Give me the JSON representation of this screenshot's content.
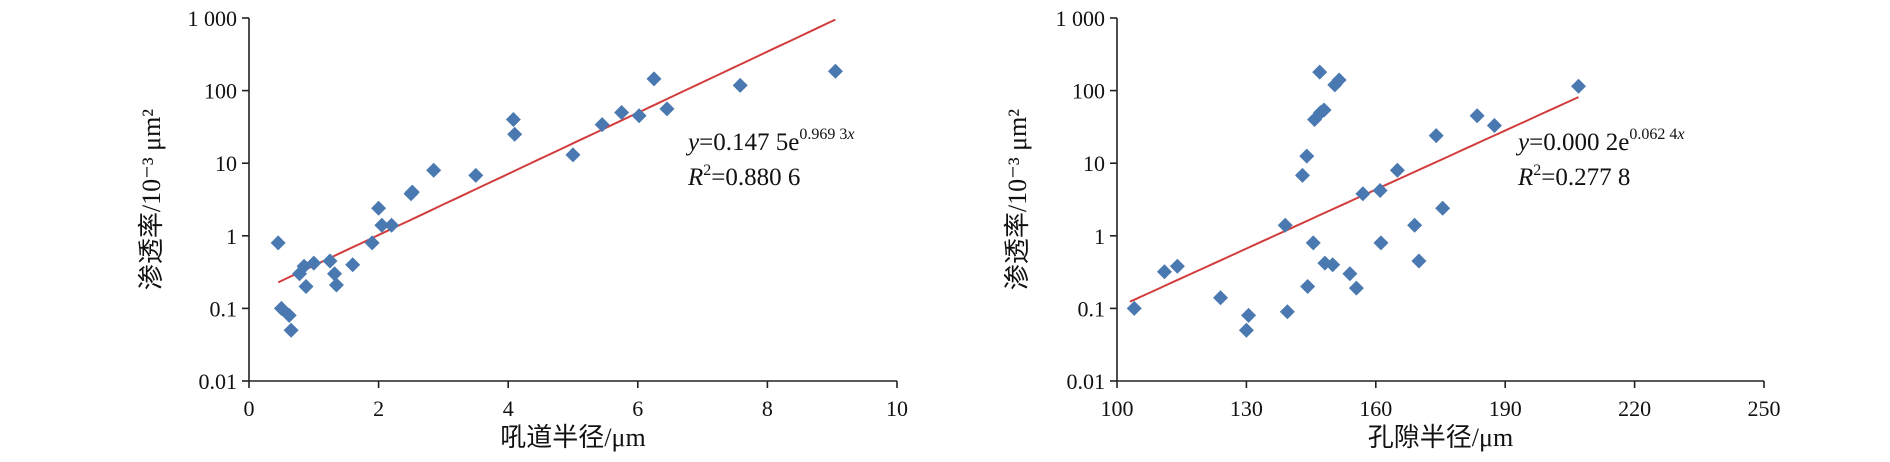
{
  "chart_data": [
    {
      "type": "scatter",
      "xlabel": "吼道半径/μm",
      "ylabel": "渗透率/10⁻³ μm²",
      "y_scale": "log",
      "xlim": [
        0,
        10
      ],
      "ylim": [
        0.01,
        1000
      ],
      "x_ticks": [
        "0",
        "2",
        "4",
        "6",
        "8",
        "10"
      ],
      "y_ticks": [
        "0.01",
        "0.1",
        "1",
        "10",
        "100",
        "1 000"
      ],
      "grid": false,
      "trendline": {
        "type": "exponential",
        "a": 0.1475,
        "b": 0.9693,
        "x_range": [
          0.45,
          9.05
        ],
        "equation_parts": {
          "y": "y",
          "coef": "=0.147 5e",
          "exp": "0.969 3",
          "x": "x"
        },
        "r2_parts": {
          "r": "R",
          "sup": "2",
          "value": "=0.880 6"
        },
        "label_position": "right-center"
      },
      "points": [
        {
          "x": 0.45,
          "y": 0.8
        },
        {
          "x": 0.5,
          "y": 0.1
        },
        {
          "x": 0.62,
          "y": 0.08
        },
        {
          "x": 0.65,
          "y": 0.05
        },
        {
          "x": 0.78,
          "y": 0.3
        },
        {
          "x": 0.85,
          "y": 0.38
        },
        {
          "x": 0.88,
          "y": 0.2
        },
        {
          "x": 1.0,
          "y": 0.42
        },
        {
          "x": 1.25,
          "y": 0.45
        },
        {
          "x": 1.32,
          "y": 0.3
        },
        {
          "x": 1.35,
          "y": 0.21
        },
        {
          "x": 1.6,
          "y": 0.4
        },
        {
          "x": 1.9,
          "y": 0.8
        },
        {
          "x": 2.0,
          "y": 2.4
        },
        {
          "x": 2.05,
          "y": 1.4
        },
        {
          "x": 2.2,
          "y": 1.4
        },
        {
          "x": 2.5,
          "y": 3.8
        },
        {
          "x": 2.52,
          "y": 4.0
        },
        {
          "x": 2.85,
          "y": 8.0
        },
        {
          "x": 3.5,
          "y": 6.8
        },
        {
          "x": 4.08,
          "y": 40
        },
        {
          "x": 4.1,
          "y": 25
        },
        {
          "x": 5.0,
          "y": 13
        },
        {
          "x": 5.45,
          "y": 34
        },
        {
          "x": 5.75,
          "y": 50
        },
        {
          "x": 6.02,
          "y": 45
        },
        {
          "x": 6.25,
          "y": 145
        },
        {
          "x": 6.45,
          "y": 56
        },
        {
          "x": 7.58,
          "y": 118
        },
        {
          "x": 9.05,
          "y": 185
        }
      ]
    },
    {
      "type": "scatter",
      "xlabel": "孔隙半径/μm",
      "ylabel": "渗透率/10⁻³ μm²",
      "y_scale": "log",
      "xlim": [
        100,
        250
      ],
      "ylim": [
        0.01,
        1000
      ],
      "x_ticks": [
        "100",
        "130",
        "160",
        "190",
        "220",
        "250"
      ],
      "y_ticks": [
        "0.01",
        "0.1",
        "1",
        "10",
        "100",
        "1 000"
      ],
      "grid": false,
      "trendline": {
        "type": "exponential",
        "a": 0.0002,
        "b": 0.0624,
        "x_range": [
          103,
          207
        ],
        "equation_parts": {
          "y": "y",
          "coef": "=0.000 2e",
          "exp": "0.062 4",
          "x": "x"
        },
        "r2_parts": {
          "r": "R",
          "sup": "2",
          "value": "=0.277 8"
        },
        "label_position": "right-center"
      },
      "points": [
        {
          "x": 104,
          "y": 0.1
        },
        {
          "x": 111,
          "y": 0.32
        },
        {
          "x": 114,
          "y": 0.38
        },
        {
          "x": 124,
          "y": 0.14
        },
        {
          "x": 130,
          "y": 0.05
        },
        {
          "x": 130.5,
          "y": 0.08
        },
        {
          "x": 139,
          "y": 1.4
        },
        {
          "x": 139.5,
          "y": 0.09
        },
        {
          "x": 143,
          "y": 6.8
        },
        {
          "x": 144,
          "y": 12.5
        },
        {
          "x": 144.2,
          "y": 0.2
        },
        {
          "x": 145.5,
          "y": 0.8
        },
        {
          "x": 145.8,
          "y": 40
        },
        {
          "x": 147,
          "y": 180
        },
        {
          "x": 147.2,
          "y": 50
        },
        {
          "x": 148,
          "y": 54
        },
        {
          "x": 148.2,
          "y": 0.42
        },
        {
          "x": 150,
          "y": 0.4
        },
        {
          "x": 150.5,
          "y": 120
        },
        {
          "x": 151.5,
          "y": 140
        },
        {
          "x": 154,
          "y": 0.3
        },
        {
          "x": 155.5,
          "y": 0.19
        },
        {
          "x": 157,
          "y": 3.8
        },
        {
          "x": 161,
          "y": 4.2
        },
        {
          "x": 161.2,
          "y": 0.8
        },
        {
          "x": 165,
          "y": 8.0
        },
        {
          "x": 169,
          "y": 1.4
        },
        {
          "x": 170,
          "y": 0.45
        },
        {
          "x": 174,
          "y": 24
        },
        {
          "x": 175.5,
          "y": 2.4
        },
        {
          "x": 183.5,
          "y": 45
        },
        {
          "x": 187.5,
          "y": 33
        },
        {
          "x": 207,
          "y": 115
        }
      ]
    }
  ]
}
